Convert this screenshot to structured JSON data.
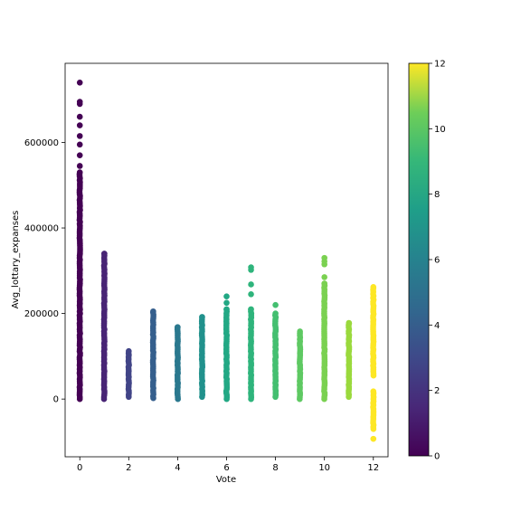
{
  "chart_data": {
    "type": "scatter",
    "title": "",
    "xlabel": "Vote",
    "ylabel": "Avg_lottary_expanses",
    "xlim": [
      -0.6,
      12.6
    ],
    "ylim": [
      -135000,
      785000
    ],
    "xticks": [
      0,
      2,
      4,
      6,
      8,
      10,
      12
    ],
    "xtick_labels": [
      "0",
      "2",
      "4",
      "6",
      "8",
      "10",
      "12"
    ],
    "yticks": [
      0,
      200000,
      400000,
      600000
    ],
    "ytick_labels": [
      "0",
      "200000",
      "400000",
      "600000"
    ],
    "grid": false,
    "legend": "none",
    "colormap": "viridis",
    "colorbar": {
      "range": [
        0,
        12
      ],
      "ticks": [
        0,
        2,
        4,
        6,
        8,
        10,
        12
      ],
      "tick_labels": [
        "0",
        "2",
        "4",
        "6",
        "8",
        "10",
        "12"
      ]
    },
    "columns": [
      {
        "x": 0,
        "color": "#440154",
        "min": 0,
        "max": 530000,
        "outliers": [
          545000,
          570000,
          595000,
          615000,
          640000,
          660000,
          690000,
          695000,
          740000
        ]
      },
      {
        "x": 1,
        "color": "#482475",
        "min": 0,
        "max": 340000,
        "outliers": []
      },
      {
        "x": 2,
        "color": "#414487",
        "min": 5000,
        "max": 112000,
        "outliers": []
      },
      {
        "x": 3,
        "color": "#355f8d",
        "min": 2000,
        "max": 205000,
        "outliers": []
      },
      {
        "x": 4,
        "color": "#2a788e",
        "min": 0,
        "max": 168000,
        "outliers": []
      },
      {
        "x": 5,
        "color": "#21918c",
        "min": 5000,
        "max": 192000,
        "outliers": []
      },
      {
        "x": 6,
        "color": "#22a884",
        "min": 0,
        "max": 210000,
        "outliers": [
          225000,
          240000
        ]
      },
      {
        "x": 7,
        "color": "#2fb47c",
        "min": 0,
        "max": 210000,
        "outliers": [
          245000,
          268000,
          302000,
          308000
        ]
      },
      {
        "x": 8,
        "color": "#44bf70",
        "min": 5000,
        "max": 200000,
        "outliers": [
          220000
        ]
      },
      {
        "x": 9,
        "color": "#5ec962",
        "min": 0,
        "max": 158000,
        "outliers": []
      },
      {
        "x": 10,
        "color": "#7ad151",
        "min": 0,
        "max": 270000,
        "outliers": [
          285000,
          315000,
          322000,
          330000
        ]
      },
      {
        "x": 11,
        "color": "#9ad93c",
        "min": 5000,
        "max": 178000,
        "outliers": []
      },
      {
        "x": 12,
        "color": "#fde725",
        "segments": [
          [
            55000,
            262000
          ],
          [
            -70000,
            18000
          ]
        ],
        "outliers": [
          -93000
        ]
      }
    ]
  }
}
